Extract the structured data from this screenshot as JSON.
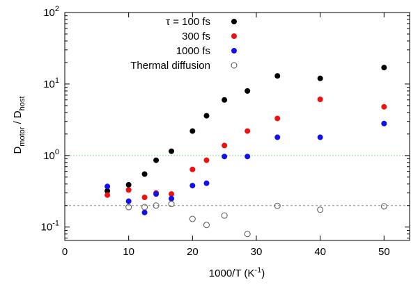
{
  "chart_data": {
    "type": "scatter",
    "xlabel": "1000/T  (K",
    "xlabel_sup": "-1",
    "xlabel_suffix": ")",
    "ylabel": {
      "main": "D",
      "sub1": "motor",
      "sep": " / D",
      "sub2": "host"
    },
    "xlim": [
      0,
      54
    ],
    "ylim": [
      0.065,
      100
    ],
    "y_scale": "log",
    "x_ticks": [
      0,
      10,
      20,
      30,
      40,
      50
    ],
    "x_tick_labels": [
      "0",
      "10",
      "20",
      "30",
      "40",
      "50"
    ],
    "y_ticks": [
      0.1,
      1,
      10,
      100
    ],
    "y_tick_labels": [
      {
        "base": "10",
        "exp": "-1"
      },
      {
        "base": "10",
        "exp": "0"
      },
      {
        "base": "10",
        "exp": "1"
      },
      {
        "base": "10",
        "exp": "2"
      }
    ],
    "grid": false,
    "legend_position": "top-center",
    "reference_lines": [
      {
        "y": 1.0,
        "color": "#88dd88",
        "style": "dotted"
      },
      {
        "y": 0.2,
        "color": "#888888",
        "style": "dashed"
      }
    ],
    "series": [
      {
        "name": "τ = 100 fs",
        "color": "#000000",
        "filled": true,
        "points": [
          [
            6.67,
            0.32
          ],
          [
            10,
            0.39
          ],
          [
            12.5,
            0.55
          ],
          [
            14.3,
            0.86
          ],
          [
            16.7,
            1.15
          ],
          [
            20,
            2.2
          ],
          [
            22.2,
            3.6
          ],
          [
            25,
            6.0
          ],
          [
            28.6,
            8.0
          ],
          [
            33.3,
            13.0
          ],
          [
            40,
            12.0
          ],
          [
            50,
            17.0
          ]
        ]
      },
      {
        "name": "300 fs",
        "color": "#ee1111",
        "filled": true,
        "points": [
          [
            6.67,
            0.28
          ],
          [
            10,
            0.33
          ],
          [
            12.5,
            0.26
          ],
          [
            14.3,
            0.3
          ],
          [
            16.7,
            0.29
          ],
          [
            20,
            0.64
          ],
          [
            22.2,
            0.86
          ],
          [
            25,
            1.38
          ],
          [
            28.6,
            2.2
          ],
          [
            33.3,
            3.3
          ],
          [
            40,
            6.1
          ],
          [
            50,
            4.8
          ]
        ]
      },
      {
        "name": "1000 fs",
        "color": "#1111ee",
        "filled": true,
        "points": [
          [
            6.67,
            0.37
          ],
          [
            10,
            0.23
          ],
          [
            12.5,
            0.16
          ],
          [
            14.3,
            0.29
          ],
          [
            16.7,
            0.25
          ],
          [
            20,
            0.38
          ],
          [
            22.2,
            0.41
          ],
          [
            25,
            0.97
          ],
          [
            28.6,
            0.97
          ],
          [
            33.3,
            1.8
          ],
          [
            40,
            1.8
          ],
          [
            50,
            2.8
          ]
        ]
      },
      {
        "name": "Thermal diffusion",
        "color": "#555555",
        "filled": false,
        "points": [
          [
            10,
            0.19
          ],
          [
            12.5,
            0.19
          ],
          [
            14.3,
            0.2
          ],
          [
            16.7,
            0.21
          ],
          [
            20,
            0.13
          ],
          [
            22.2,
            0.107
          ],
          [
            25,
            0.145
          ],
          [
            28.6,
            0.08
          ],
          [
            33.3,
            0.198
          ],
          [
            40,
            0.175
          ],
          [
            50,
            0.195
          ]
        ]
      }
    ]
  }
}
